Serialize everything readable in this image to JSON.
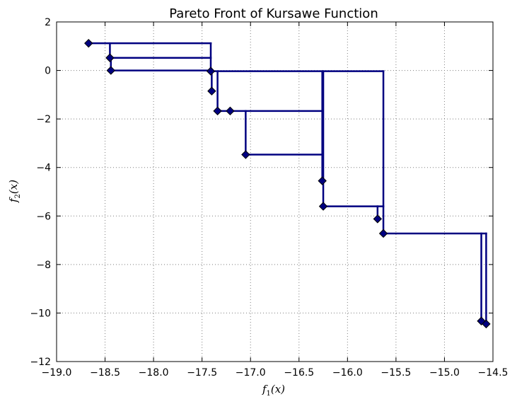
{
  "chart_data": {
    "type": "line",
    "title": "Pareto Front of Kursawe Function",
    "xlabel": "f_1(x)",
    "ylabel": "f_2(x)",
    "xlim": [
      -19.0,
      -14.5
    ],
    "ylim": [
      -12,
      2
    ],
    "xticks": [
      -19.0,
      -18.5,
      -18.0,
      -17.5,
      -17.0,
      -16.5,
      -16.0,
      -15.5,
      -15.0,
      -14.5
    ],
    "yticks": [
      2,
      0,
      -2,
      -4,
      -6,
      -8,
      -10,
      -12
    ],
    "xtick_labels": [
      "−19.0",
      "−18.5",
      "−18.0",
      "−17.5",
      "−17.0",
      "−16.5",
      "−16.0",
      "−15.5",
      "−15.0",
      "−14.5"
    ],
    "ytick_labels": [
      "2",
      "0",
      "−2",
      "−4",
      "−6",
      "−8",
      "−10",
      "−12"
    ],
    "grid": true,
    "series": [
      {
        "marker": "diamond",
        "points": [
          {
            "x": -18.67,
            "y": 1.12
          },
          {
            "x": -18.45,
            "y": 0.52
          },
          {
            "x": -18.44,
            "y": 0.0
          },
          {
            "x": -17.41,
            "y": -0.03
          },
          {
            "x": -17.4,
            "y": -0.85
          },
          {
            "x": -17.34,
            "y": -1.67
          },
          {
            "x": -17.21,
            "y": -1.67
          },
          {
            "x": -17.05,
            "y": -3.47
          },
          {
            "x": -16.26,
            "y": -4.55
          },
          {
            "x": -16.25,
            "y": -5.6
          },
          {
            "x": -15.69,
            "y": -6.12
          },
          {
            "x": -15.63,
            "y": -6.72
          },
          {
            "x": -14.62,
            "y": -10.33
          },
          {
            "x": -14.57,
            "y": -10.45
          }
        ]
      }
    ],
    "segments": [
      [
        [
          -18.67,
          1.12
        ],
        [
          -17.41,
          1.12
        ]
      ],
      [
        [
          -17.41,
          1.12
        ],
        [
          -17.41,
          -0.03
        ]
      ],
      [
        [
          -18.45,
          1.12
        ],
        [
          -18.45,
          0.52
        ]
      ],
      [
        [
          -18.45,
          0.52
        ],
        [
          -17.41,
          0.52
        ]
      ],
      [
        [
          -18.44,
          0.52
        ],
        [
          -18.44,
          0.0
        ]
      ],
      [
        [
          -18.44,
          0.0
        ],
        [
          -17.41,
          0.0
        ]
      ],
      [
        [
          -17.41,
          -0.03
        ],
        [
          -15.63,
          -0.03
        ]
      ],
      [
        [
          -15.63,
          -0.03
        ],
        [
          -15.63,
          -6.72
        ]
      ],
      [
        [
          -17.4,
          -0.03
        ],
        [
          -17.4,
          -0.85
        ]
      ],
      [
        [
          -17.34,
          -0.03
        ],
        [
          -17.34,
          -1.67
        ]
      ],
      [
        [
          -17.34,
          -1.67
        ],
        [
          -16.26,
          -1.67
        ]
      ],
      [
        [
          -16.26,
          -0.03
        ],
        [
          -16.26,
          -4.55
        ]
      ],
      [
        [
          -16.25,
          -0.03
        ],
        [
          -16.25,
          -5.6
        ]
      ],
      [
        [
          -17.05,
          -1.67
        ],
        [
          -17.05,
          -3.47
        ]
      ],
      [
        [
          -17.05,
          -3.47
        ],
        [
          -16.26,
          -3.47
        ]
      ],
      [
        [
          -16.25,
          -5.6
        ],
        [
          -15.63,
          -5.6
        ]
      ],
      [
        [
          -15.69,
          -5.6
        ],
        [
          -15.69,
          -6.12
        ]
      ],
      [
        [
          -15.63,
          -6.72
        ],
        [
          -14.57,
          -6.72
        ]
      ],
      [
        [
          -14.62,
          -6.72
        ],
        [
          -14.62,
          -10.33
        ]
      ],
      [
        [
          -14.57,
          -6.72
        ],
        [
          -14.57,
          -10.45
        ]
      ]
    ],
    "colors": {
      "line": "#000080",
      "marker": "#000080",
      "grid": "#7f7f7f",
      "axes": "#000000"
    }
  }
}
